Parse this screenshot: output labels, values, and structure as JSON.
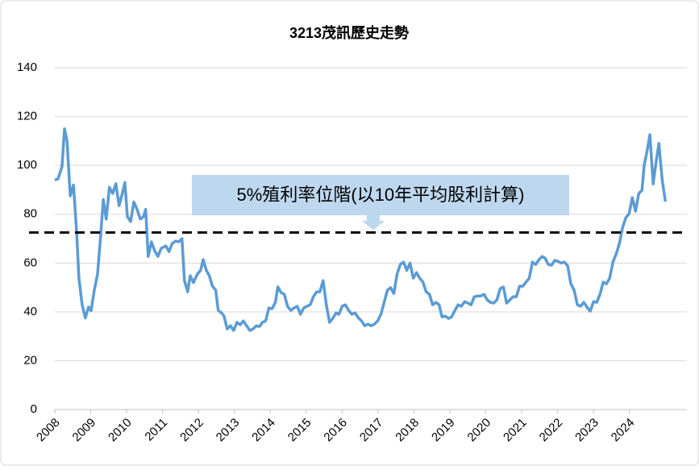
{
  "chart_data": {
    "type": "line",
    "title": "3213茂訊歷史走勢",
    "annotation": "5%殖利率位階(以10年平均股利計算)",
    "reference_line": {
      "value": 72.5,
      "color": "#000000",
      "dashed": true
    },
    "xlim": [
      2008,
      2025.6
    ],
    "xticks": [
      2008,
      2009,
      2010,
      2011,
      2012,
      2013,
      2014,
      2015,
      2016,
      2017,
      2018,
      2019,
      2020,
      2021,
      2022,
      2023,
      2024
    ],
    "ylim": [
      0,
      140
    ],
    "yticks": [
      0,
      20,
      40,
      60,
      80,
      100,
      120,
      140
    ],
    "grid": true,
    "x": [
      2008.0,
      2008.09,
      2008.2,
      2008.27,
      2008.34,
      2008.43,
      2008.52,
      2008.61,
      2008.67,
      2008.76,
      2008.85,
      2008.94,
      2009.01,
      2009.1,
      2009.19,
      2009.28,
      2009.35,
      2009.43,
      2009.52,
      2009.61,
      2009.7,
      2009.79,
      2009.88,
      2009.95,
      2010.02,
      2010.11,
      2010.2,
      2010.29,
      2010.38,
      2010.47,
      2010.53,
      2010.6,
      2010.69,
      2010.78,
      2010.87,
      2010.96,
      2011.09,
      2011.18,
      2011.27,
      2011.36,
      2011.45,
      2011.54,
      2011.61,
      2011.7,
      2011.77,
      2011.86,
      2011.97,
      2012.06,
      2012.13,
      2012.22,
      2012.3,
      2012.39,
      2012.48,
      2012.55,
      2012.64,
      2012.71,
      2012.8,
      2012.89,
      2012.98,
      2013.07,
      2013.16,
      2013.25,
      2013.34,
      2013.43,
      2013.52,
      2013.61,
      2013.7,
      2013.78,
      2013.87,
      2013.96,
      2014.05,
      2014.14,
      2014.21,
      2014.3,
      2014.39,
      2014.48,
      2014.57,
      2014.66,
      2014.75,
      2014.84,
      2014.93,
      2015.02,
      2015.11,
      2015.2,
      2015.29,
      2015.38,
      2015.47,
      2015.56,
      2015.65,
      2015.74,
      2015.83,
      2015.91,
      2016.0,
      2016.09,
      2016.18,
      2016.27,
      2016.36,
      2016.45,
      2016.54,
      2016.63,
      2016.72,
      2016.81,
      2016.9,
      2016.99,
      2017.08,
      2017.17,
      2017.26,
      2017.35,
      2017.44,
      2017.53,
      2017.62,
      2017.71,
      2017.8,
      2017.89,
      2017.98,
      2018.07,
      2018.16,
      2018.25,
      2018.34,
      2018.43,
      2018.52,
      2018.61,
      2018.7,
      2018.78,
      2018.87,
      2018.96,
      2019.05,
      2019.14,
      2019.23,
      2019.32,
      2019.41,
      2019.5,
      2019.59,
      2019.68,
      2019.77,
      2019.86,
      2019.95,
      2020.04,
      2020.13,
      2020.22,
      2020.31,
      2020.4,
      2020.49,
      2020.58,
      2020.67,
      2020.76,
      2020.85,
      2020.94,
      2021.03,
      2021.12,
      2021.21,
      2021.3,
      2021.39,
      2021.48,
      2021.57,
      2021.65,
      2021.74,
      2021.83,
      2021.92,
      2022.01,
      2022.1,
      2022.19,
      2022.28,
      2022.37,
      2022.46,
      2022.55,
      2022.64,
      2022.73,
      2022.82,
      2022.91,
      2023.0,
      2023.09,
      2023.18,
      2023.27,
      2023.36,
      2023.45,
      2023.54,
      2023.63,
      2023.72,
      2023.81,
      2023.9,
      2023.99,
      2024.08,
      2024.17,
      2024.26,
      2024.35,
      2024.41,
      2024.5,
      2024.57,
      2024.66,
      2024.75,
      2024.82,
      2024.91,
      2025.0
    ],
    "series": [
      {
        "name": "3213茂訊",
        "color": "#5b9bd5",
        "values": [
          94,
          94.5,
          99.5,
          115,
          110,
          87.5,
          92,
          72,
          54,
          43,
          37.5,
          42,
          40.5,
          49,
          55.5,
          72,
          86,
          78,
          91,
          88.5,
          92.5,
          83.5,
          88.5,
          93,
          79,
          77,
          85,
          82,
          78,
          79,
          82,
          62.7,
          68.7,
          65,
          62.7,
          66,
          67,
          64.7,
          68,
          69,
          68.7,
          70,
          52.8,
          48.2,
          54.8,
          52,
          55.5,
          57,
          61.4,
          57,
          54.8,
          50.5,
          48.9,
          40.6,
          39.6,
          38.3,
          33,
          34.3,
          32.4,
          35.7,
          34.7,
          36.3,
          34.3,
          32.4,
          33,
          34.3,
          34,
          35.7,
          36.3,
          41.6,
          41.3,
          43.9,
          50.2,
          47.9,
          47.2,
          42.3,
          40.6,
          41.6,
          42.3,
          39,
          41.6,
          42.3,
          42.9,
          46.2,
          48.2,
          48.2,
          52.8,
          42.9,
          35.7,
          37.3,
          39.6,
          39,
          42.3,
          42.9,
          40.6,
          39,
          39.6,
          37.6,
          36.3,
          34.3,
          35,
          34.3,
          35,
          36.3,
          39,
          43.9,
          48.9,
          49.9,
          47.5,
          55.5,
          59.4,
          60.4,
          57,
          60,
          53.8,
          56.1,
          53.8,
          52.2,
          48.2,
          47.2,
          42.9,
          43.9,
          42.9,
          38,
          38.3,
          37.3,
          38,
          40.6,
          42.9,
          42.3,
          44.2,
          43.6,
          42.9,
          46.2,
          46.5,
          46.5,
          47.2,
          44.9,
          43.9,
          43.6,
          44.9,
          49.5,
          50.2,
          43.6,
          44.9,
          46.2,
          46.2,
          50.5,
          50.5,
          52.2,
          53.8,
          60.4,
          59.4,
          61.4,
          62.7,
          62,
          59.4,
          59.1,
          61.1,
          60.7,
          60,
          60.4,
          58.8,
          51.5,
          48.9,
          42.9,
          42.3,
          43.9,
          41.9,
          40.3,
          44.2,
          43.9,
          47.2,
          52.2,
          51.5,
          53.8,
          60.4,
          63.7,
          68,
          74.6,
          78.6,
          80.2,
          86.8,
          81.2,
          88.5,
          89.8,
          100,
          106.6,
          112.6,
          92.4,
          102.3,
          109,
          94.4,
          85.2
        ]
      }
    ]
  }
}
